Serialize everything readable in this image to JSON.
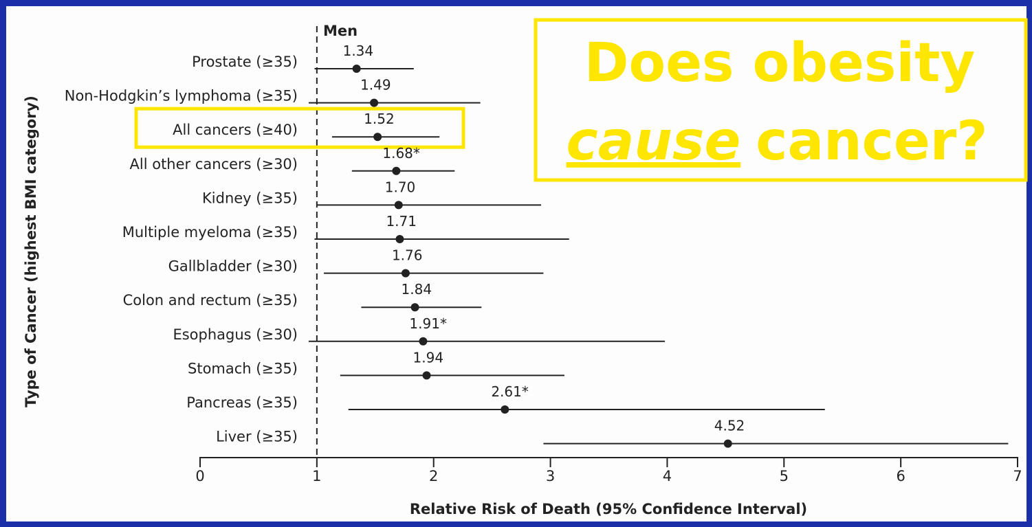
{
  "chart_data": {
    "type": "forest",
    "title": "Men",
    "x_label": "Relative Risk of Death (95% Confidence Interval)",
    "y_label": "Type of Cancer (highest BMI category)",
    "categories": [
      "Prostate (≥35)",
      "Non-Hodgkin’s lymphoma (≥35)",
      "All cancers (≥40)",
      "All other cancers (≥30)",
      "Kidney (≥35)",
      "Multiple myeloma (≥35)",
      "Gallbladder (≥30)",
      "Colon and rectum (≥35)",
      "Esophagus (≥30)",
      "Stomach (≥35)",
      "Pancreas (≥35)",
      "Liver (≥35)"
    ],
    "values": [
      1.34,
      1.49,
      1.52,
      1.68,
      1.7,
      1.71,
      1.76,
      1.84,
      1.91,
      1.94,
      2.61,
      4.52
    ],
    "value_labels": [
      "1.34",
      "1.49",
      "1.52",
      "1.68*",
      "1.70",
      "1.71",
      "1.76",
      "1.84",
      "1.91*",
      "1.94",
      "2.61*",
      "4.52"
    ],
    "ci_low": [
      0.98,
      0.93,
      1.13,
      1.3,
      1.0,
      0.98,
      1.06,
      1.38,
      0.93,
      1.2,
      1.27,
      2.94
    ],
    "ci_high": [
      1.83,
      2.4,
      2.05,
      2.18,
      2.92,
      3.16,
      2.94,
      2.41,
      3.98,
      3.12,
      5.35,
      6.92
    ],
    "color": "#222222",
    "xlim": [
      0,
      7
    ],
    "xticks": [
      0,
      1,
      2,
      3,
      4,
      5,
      6,
      7
    ],
    "reference_line": 1,
    "highlight_index": 2,
    "highlight_color": "#ffe600"
  },
  "annotation": {
    "line1": "Does obesity",
    "emphasis": "cause",
    "rest": "cancer?"
  }
}
